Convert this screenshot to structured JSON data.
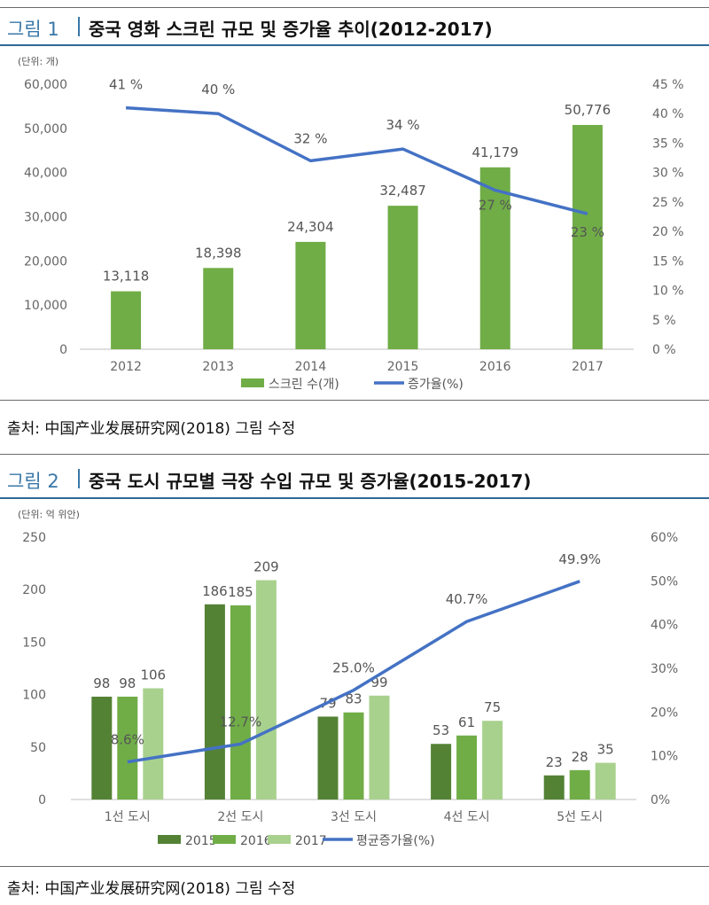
{
  "figure1": {
    "label": "그림 1",
    "title": "중국 영화 스크린 규모 및 증가율 추이(2012-2017)",
    "unit": "(단위: 개)",
    "source": "출처: 中国产业发展研究网(2018) 그림 수정"
  },
  "figure2": {
    "label": "그림 2",
    "title": "중국 도시 규모별 극장 수입 규모 및 증가율(2015-2017)",
    "unit": "(단위: 억 위안)",
    "source": "출처: 中国产业发展研究网(2018) 그림 수정"
  },
  "chart_data": [
    {
      "type": "bar",
      "title": "중국 영화 스크린 규모 및 증가율 추이(2012-2017)",
      "categories": [
        "2012",
        "2013",
        "2014",
        "2015",
        "2016",
        "2017"
      ],
      "series": [
        {
          "name": "스크린 수(개)",
          "kind": "bar",
          "axis": "left",
          "color": "#70ad47",
          "values": [
            13118,
            18398,
            24304,
            32487,
            41179,
            50776
          ],
          "labels": [
            "13,118",
            "18,398",
            "24,304",
            "32,487",
            "41,179",
            "50,776"
          ]
        },
        {
          "name": "증가율(%)",
          "kind": "line",
          "axis": "right",
          "color": "#4472c4",
          "values": [
            41,
            40,
            32,
            34,
            27,
            23
          ],
          "labels": [
            "41 %",
            "40 %",
            "32 %",
            "34 %",
            "27 %",
            "23 %"
          ]
        }
      ],
      "ylim": [
        0,
        60000
      ],
      "yticks": [
        "0",
        "10,000",
        "20,000",
        "30,000",
        "40,000",
        "50,000",
        "60,000"
      ],
      "y2lim": [
        0,
        45
      ],
      "y2ticks": [
        "0 %",
        "5 %",
        "10 %",
        "15 %",
        "20 %",
        "25 %",
        "30 %",
        "35 %",
        "40 %",
        "45 %"
      ],
      "legend": "bottom"
    },
    {
      "type": "bar",
      "title": "중국 도시 규모별 극장 수입 규모 및 증가율(2015-2017)",
      "categories": [
        "1선 도시",
        "2선 도시",
        "3선 도시",
        "4선 도시",
        "5선 도시"
      ],
      "series": [
        {
          "name": "2015",
          "kind": "bar",
          "axis": "left",
          "color": "#548235",
          "values": [
            98,
            186,
            79,
            53,
            23
          ],
          "labels": [
            "98",
            "186",
            "79",
            "53",
            "23"
          ]
        },
        {
          "name": "2016",
          "kind": "bar",
          "axis": "left",
          "color": "#70ad47",
          "values": [
            98,
            185,
            83,
            61,
            28
          ],
          "labels": [
            "98",
            "185",
            "83",
            "61",
            "28"
          ]
        },
        {
          "name": "2017",
          "kind": "bar",
          "axis": "left",
          "color": "#a9d18e",
          "values": [
            106,
            209,
            99,
            75,
            35
          ],
          "labels": [
            "106",
            "209",
            "99",
            "75",
            "35"
          ]
        },
        {
          "name": "평균증가율(%)",
          "kind": "line",
          "axis": "right",
          "color": "#4472c4",
          "values": [
            8.6,
            12.7,
            25.0,
            40.7,
            49.9
          ],
          "labels": [
            "8.6%",
            "12.7%",
            "25.0%",
            "40.7%",
            "49.9%"
          ]
        }
      ],
      "ylim": [
        0,
        250
      ],
      "yticks": [
        "0",
        "50",
        "100",
        "150",
        "200",
        "250"
      ],
      "y2lim": [
        0,
        60
      ],
      "y2ticks": [
        "0%",
        "10%",
        "20%",
        "30%",
        "40%",
        "50%",
        "60%"
      ],
      "legend": "bottom"
    }
  ]
}
